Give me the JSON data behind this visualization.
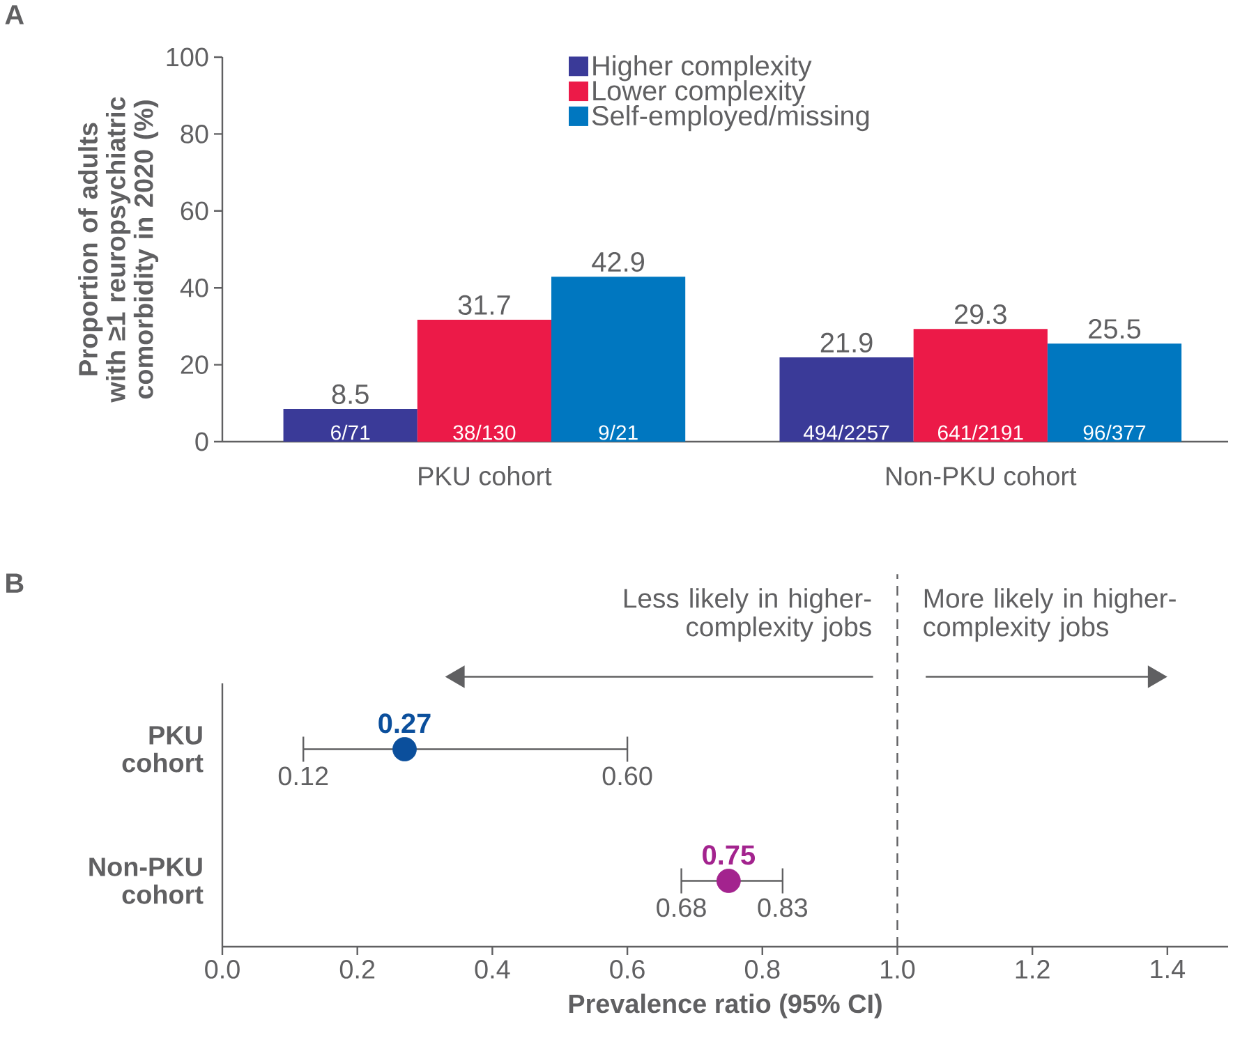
{
  "chart_data": [
    {
      "type": "bar",
      "title": "A",
      "ylabel": "Proportion of adults with ≥1 reuropsychiatric comorbidity in 2020 (%)",
      "categories": [
        "PKU cohort",
        "Non-PKU cohort"
      ],
      "series": [
        {
          "name": "Higher complexity",
          "color": "#3a3a98",
          "values": [
            8.5,
            21.9
          ]
        },
        {
          "name": "Lower complexity",
          "color": "#ec1a48",
          "values": [
            31.7,
            29.3
          ]
        },
        {
          "name": "Self-employed/missing",
          "color": "#0077c0",
          "values": [
            42.9,
            25.5
          ]
        }
      ],
      "ylim": [
        0,
        100
      ],
      "yticks": [
        0,
        20,
        40,
        60,
        80,
        100
      ],
      "data_labels": true,
      "legend": "top",
      "annotations": [
        "6/71",
        "38/130",
        "9/21",
        "494/2257",
        "641/2191",
        "96/377"
      ]
    },
    {
      "type": "scatter",
      "title": "B",
      "xlabel": "Prevalence ratio (95% CI)",
      "orientation": "horizontal",
      "categories": [
        "PKU cohort",
        "Non-PKU cohort"
      ],
      "values": [
        0.27,
        0.75
      ],
      "colors": [
        "#0b4f9c",
        "#a3238e"
      ],
      "errors": [
        [
          0.12,
          0.6
        ],
        [
          0.68,
          0.83
        ]
      ],
      "marker": "circle",
      "data_labels": true,
      "xlim": [
        0,
        1.49
      ],
      "xticks": [
        {
          "value": 0,
          "label": "0.0"
        },
        0.2,
        0.4,
        0.6,
        0.8,
        {
          "value": 1,
          "label": "1.0"
        },
        1.2,
        1.4
      ],
      "ref_lines": [
        {
          "axis": "x",
          "value": 1.0,
          "line_style": "dashed",
          "color": "#606062"
        }
      ],
      "annotations": [
        "Less likely in higher-complexity jobs",
        "More likely in higher-complexity jobs",
        {
          "text": "0.12",
          "x": 0.12,
          "y": "PKU cohort"
        },
        {
          "text": "0.60",
          "x": 0.6,
          "y": "PKU cohort"
        },
        {
          "text": "0.68",
          "x": 0.68,
          "y": "Non-PKU cohort"
        },
        {
          "text": "0.83",
          "x": 0.83,
          "y": "Non-PKU cohort"
        }
      ]
    }
  ]
}
